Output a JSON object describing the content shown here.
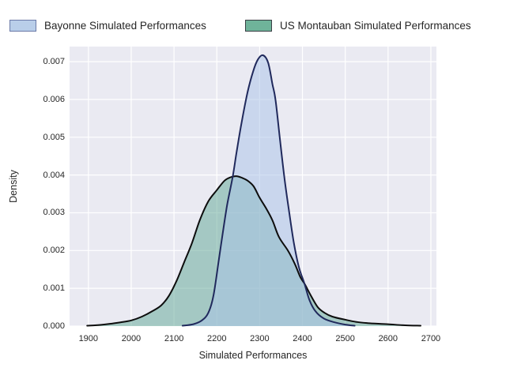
{
  "figure": {
    "background": "#ffffff"
  },
  "legend": {
    "items": [
      {
        "label": "Bayonne Simulated Performances",
        "fill": "#b9cee9",
        "border": "#6b7aa8"
      },
      {
        "label": "US Montauban Simulated Performances",
        "fill": "#6fb39a",
        "border": "#3a4045"
      }
    ]
  },
  "axes": {
    "x_label": "Simulated Performances",
    "y_label": "Density",
    "background": "#eaeaf2",
    "grid_color": "#ffffff",
    "tick_color": "#262626",
    "x_ticks": [
      1900,
      2000,
      2100,
      2200,
      2300,
      2400,
      2500,
      2600,
      2700
    ],
    "y_ticks": [
      "0.000",
      "0.001",
      "0.002",
      "0.003",
      "0.004",
      "0.005",
      "0.006",
      "0.007"
    ]
  },
  "chart_data": {
    "type": "area",
    "subtype": "kde-density",
    "title": "",
    "xlabel": "Simulated Performances",
    "ylabel": "Density",
    "xlim": [
      1856,
      2713
    ],
    "ylim": [
      0,
      0.0074
    ],
    "grid": true,
    "legend_position": "top",
    "x_tick_values": [
      1900,
      2000,
      2100,
      2200,
      2300,
      2400,
      2500,
      2600,
      2700
    ],
    "y_tick_values": [
      0,
      0.001,
      0.002,
      0.003,
      0.004,
      0.005,
      0.006,
      0.007
    ],
    "series": [
      {
        "name": "US Montauban Simulated Performances",
        "line_color": "#0d0d0d",
        "fill_color": "rgba(94,165,147,0.5)",
        "peak": {
          "x": 2245,
          "y": 0.00397
        },
        "points": [
          [
            1897,
            1e-05
          ],
          [
            1925,
            3e-05
          ],
          [
            1950,
            6e-05
          ],
          [
            1975,
            0.0001
          ],
          [
            2000,
            0.00015
          ],
          [
            2025,
            0.00025
          ],
          [
            2050,
            0.0004
          ],
          [
            2070,
            0.00055
          ],
          [
            2088,
            0.0008
          ],
          [
            2106,
            0.0012
          ],
          [
            2124,
            0.0017
          ],
          [
            2142,
            0.0022
          ],
          [
            2160,
            0.0028
          ],
          [
            2180,
            0.0033
          ],
          [
            2200,
            0.0036
          ],
          [
            2218,
            0.00385
          ],
          [
            2232,
            0.00394
          ],
          [
            2245,
            0.00397
          ],
          [
            2258,
            0.00393
          ],
          [
            2272,
            0.00385
          ],
          [
            2286,
            0.0037
          ],
          [
            2300,
            0.0034
          ],
          [
            2316,
            0.0031
          ],
          [
            2330,
            0.0028
          ],
          [
            2345,
            0.00236
          ],
          [
            2366,
            0.002
          ],
          [
            2382,
            0.00165
          ],
          [
            2395,
            0.0013
          ],
          [
            2406,
            0.0011
          ],
          [
            2420,
            0.0008
          ],
          [
            2436,
            0.0005
          ],
          [
            2452,
            0.00035
          ],
          [
            2470,
            0.00025
          ],
          [
            2500,
            0.00017
          ],
          [
            2526,
            0.00011
          ],
          [
            2552,
            8e-05
          ],
          [
            2600,
            5e-05
          ],
          [
            2640,
            2e-05
          ],
          [
            2676,
            1e-05
          ]
        ]
      },
      {
        "name": "Bayonne Simulated Performances",
        "line_color": "#20295c",
        "fill_color": "rgba(171,196,232,0.52)",
        "peak": {
          "x": 2308,
          "y": 0.00717
        },
        "points": [
          [
            2120,
            1e-05
          ],
          [
            2145,
            5e-05
          ],
          [
            2165,
            0.00015
          ],
          [
            2180,
            0.00035
          ],
          [
            2192,
            0.0008
          ],
          [
            2204,
            0.0017
          ],
          [
            2213,
            0.0024
          ],
          [
            2224,
            0.0032
          ],
          [
            2237,
            0.00395
          ],
          [
            2246,
            0.0046
          ],
          [
            2258,
            0.0054
          ],
          [
            2272,
            0.0062
          ],
          [
            2285,
            0.00675
          ],
          [
            2296,
            0.00706
          ],
          [
            2308,
            0.00717
          ],
          [
            2320,
            0.00697
          ],
          [
            2330,
            0.0064
          ],
          [
            2337,
            0.006
          ],
          [
            2347,
            0.005
          ],
          [
            2357,
            0.004
          ],
          [
            2368,
            0.0031
          ],
          [
            2380,
            0.0022
          ],
          [
            2392,
            0.00155
          ],
          [
            2404,
            0.00115
          ],
          [
            2416,
            0.0007
          ],
          [
            2430,
            0.0004
          ],
          [
            2450,
            0.0002
          ],
          [
            2475,
            0.0001
          ],
          [
            2500,
            4e-05
          ],
          [
            2522,
            1e-05
          ]
        ]
      }
    ]
  }
}
